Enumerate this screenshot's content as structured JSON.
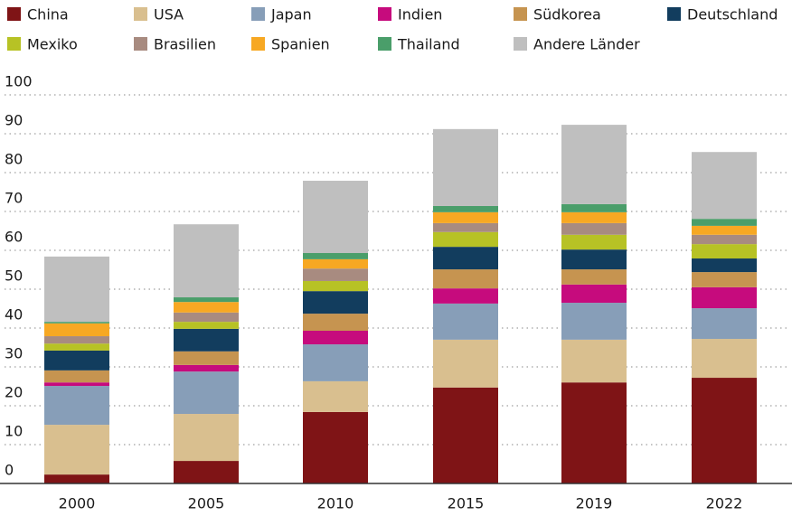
{
  "chart_data": {
    "type": "stacked_bar",
    "categories": [
      "2000",
      "2005",
      "2010",
      "2015",
      "2019",
      "2022"
    ],
    "series": [
      {
        "name": "China",
        "color": "#7f1416",
        "values": [
          2.3,
          5.8,
          18.4,
          24.7,
          26.0,
          27.2
        ]
      },
      {
        "name": "USA",
        "color": "#d9bf8f",
        "values": [
          12.8,
          12.1,
          7.9,
          12.3,
          11.0,
          10.0
        ]
      },
      {
        "name": "Japan",
        "color": "#879eb8",
        "values": [
          10.0,
          10.9,
          9.5,
          9.3,
          9.5,
          7.9
        ]
      },
      {
        "name": "Indien",
        "color": "#c60b7d",
        "values": [
          0.9,
          1.7,
          3.5,
          3.9,
          4.7,
          5.4
        ]
      },
      {
        "name": "Südkorea",
        "color": "#c69450",
        "values": [
          3.1,
          3.5,
          4.4,
          4.9,
          3.9,
          3.9
        ]
      },
      {
        "name": "Deutschland",
        "color": "#123d5e",
        "values": [
          5.1,
          5.8,
          5.8,
          5.8,
          5.1,
          3.5
        ]
      },
      {
        "name": "Mexiko",
        "color": "#b7c225",
        "values": [
          1.8,
          1.8,
          2.6,
          3.8,
          3.8,
          3.7
        ]
      },
      {
        "name": "Brasilien",
        "color": "#a88b80",
        "values": [
          1.9,
          2.4,
          3.2,
          2.3,
          3.0,
          2.4
        ]
      },
      {
        "name": "Spanien",
        "color": "#f7a823",
        "values": [
          3.3,
          2.7,
          2.4,
          2.8,
          2.8,
          2.3
        ]
      },
      {
        "name": "Thailand",
        "color": "#4a9e6a",
        "values": [
          0.4,
          1.2,
          1.6,
          1.6,
          2.1,
          1.8
        ]
      },
      {
        "name": "Andere Länder",
        "color": "#bfbfbf",
        "values": [
          16.8,
          18.8,
          18.6,
          19.8,
          20.4,
          17.2
        ]
      }
    ],
    "ylim": [
      0,
      100
    ],
    "yticks": [
      0,
      10,
      20,
      30,
      40,
      50,
      60,
      70,
      80,
      90,
      100
    ],
    "grid": true
  }
}
